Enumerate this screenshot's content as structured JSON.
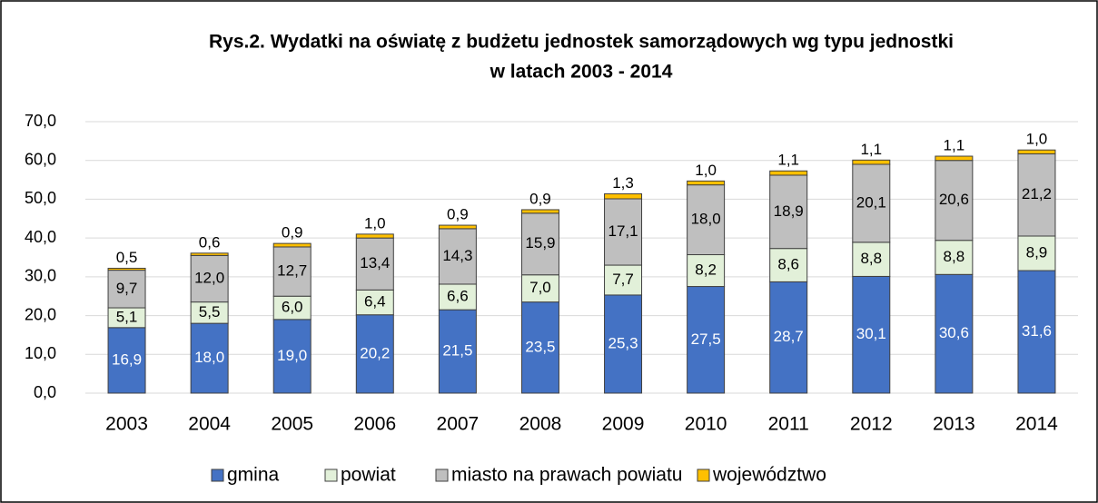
{
  "chart_data": {
    "type": "stacked_bar",
    "title": [
      "Rys.2. Wydatki na oświatę z budżetu jednostek samorządowych wg typu jednostki",
      "w latach 2003 - 2014"
    ],
    "categories": [
      "2003",
      "2004",
      "2005",
      "2006",
      "2007",
      "2008",
      "2009",
      "2010",
      "2011",
      "2012",
      "2013",
      "2014"
    ],
    "series": [
      {
        "name": "gmina",
        "color": "#4472c4",
        "values": [
          16.9,
          18.0,
          19.0,
          20.2,
          21.5,
          23.5,
          25.3,
          27.5,
          28.7,
          30.1,
          30.6,
          31.6
        ],
        "value_labels": [
          "16,9",
          "18,0",
          "19,0",
          "20,2",
          "21,5",
          "23,5",
          "25,3",
          "27,5",
          "28,7",
          "30,1",
          "30,6",
          "31,6"
        ]
      },
      {
        "name": "powiat",
        "color": "#e2f0d9",
        "values": [
          5.1,
          5.5,
          6.0,
          6.4,
          6.6,
          7.0,
          7.7,
          8.2,
          8.6,
          8.8,
          8.8,
          8.9
        ],
        "value_labels": [
          "5,1",
          "5,5",
          "6,0",
          "6,4",
          "6,6",
          "7,0",
          "7,7",
          "8,2",
          "8,6",
          "8,8",
          "8,8",
          "8,9"
        ]
      },
      {
        "name": "miasto na prawach powiatu",
        "color": "#bfbfbf",
        "values": [
          9.7,
          12.0,
          12.7,
          13.4,
          14.3,
          15.9,
          17.1,
          18.0,
          18.9,
          20.1,
          20.6,
          21.2
        ],
        "value_labels": [
          "9,7",
          "12,0",
          "12,7",
          "13,4",
          "14,3",
          "15,9",
          "17,1",
          "18,0",
          "18,9",
          "20,1",
          "20,6",
          "21,2"
        ]
      },
      {
        "name": "województwo",
        "color": "#ffc000",
        "values": [
          0.5,
          0.6,
          0.9,
          1.0,
          0.9,
          0.9,
          1.3,
          1.0,
          1.1,
          1.1,
          1.1,
          1.0
        ],
        "value_labels": [
          "0,5",
          "0,6",
          "0,9",
          "1,0",
          "0,9",
          "0,9",
          "1,3",
          "1,0",
          "1,1",
          "1,1",
          "1,1",
          "1,0"
        ]
      }
    ],
    "ylim": [
      0,
      70
    ],
    "yticks": [
      {
        "value": 0,
        "label": "0,0"
      },
      {
        "value": 10,
        "label": "10,0"
      },
      {
        "value": 20,
        "label": "20,0"
      },
      {
        "value": 30,
        "label": "30,0"
      },
      {
        "value": 40,
        "label": "40,0"
      },
      {
        "value": 50,
        "label": "50,0"
      },
      {
        "value": 60,
        "label": "60,0"
      },
      {
        "value": 70,
        "label": "70,0"
      }
    ],
    "grid": true,
    "legend": "bottom"
  }
}
